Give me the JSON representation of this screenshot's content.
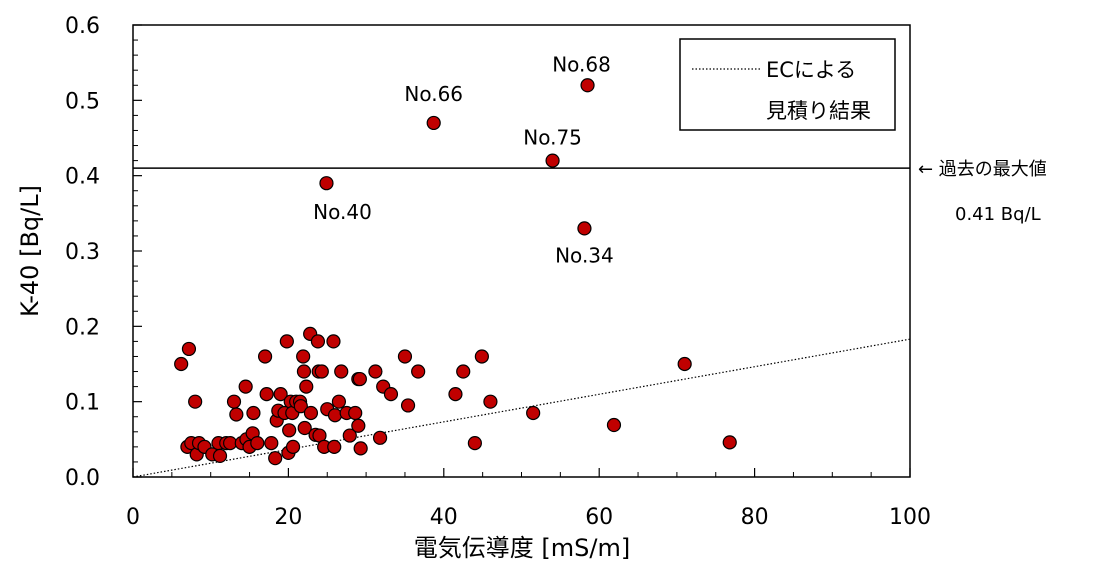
{
  "chart_data": {
    "type": "scatter",
    "xlabel": "電気伝導度 [mS/m]",
    "ylabel": "K-40 [Bq/L]",
    "xlim": [
      0,
      100
    ],
    "ylim": [
      0,
      0.6
    ],
    "x_ticks": [
      "0",
      "20",
      "40",
      "60",
      "80",
      "100"
    ],
    "y_ticks": [
      "0.0",
      "0.1",
      "0.2",
      "0.3",
      "0.4",
      "0.5",
      "0.6"
    ],
    "grid": false,
    "legend": {
      "position": "top-right",
      "line1": "ECによる",
      "line2": "見積り結果"
    },
    "marker_color": "#C00000",
    "series": [
      {
        "points": [
          [
            6.2,
            0.15
          ],
          [
            7,
            0.04
          ],
          [
            7.2,
            0.17
          ],
          [
            7.5,
            0.045
          ],
          [
            8,
            0.1
          ],
          [
            8.2,
            0.03
          ],
          [
            8.5,
            0.045
          ],
          [
            9.2,
            0.04
          ],
          [
            10.2,
            0.03
          ],
          [
            11,
            0.045
          ],
          [
            11.2,
            0.028
          ],
          [
            12,
            0.045
          ],
          [
            12.5,
            0.045
          ],
          [
            13,
            0.1
          ],
          [
            13.3,
            0.083
          ],
          [
            14,
            0.045
          ],
          [
            14.5,
            0.12
          ],
          [
            14.6,
            0.05
          ],
          [
            15,
            0.04
          ],
          [
            15.4,
            0.058
          ],
          [
            15.5,
            0.085
          ],
          [
            16,
            0.045
          ],
          [
            17,
            0.16
          ],
          [
            17.2,
            0.11
          ],
          [
            17.8,
            0.045
          ],
          [
            18.3,
            0.025
          ],
          [
            18.5,
            0.075
          ],
          [
            18.7,
            0.088
          ],
          [
            19,
            0.11
          ],
          [
            19.5,
            0.085
          ],
          [
            19.8,
            0.18
          ],
          [
            20,
            0.032
          ],
          [
            20.1,
            0.062
          ],
          [
            20.3,
            0.1
          ],
          [
            20.5,
            0.085
          ],
          [
            20.6,
            0.04
          ],
          [
            21,
            0.1
          ],
          [
            21.5,
            0.1
          ],
          [
            21.6,
            0.094
          ],
          [
            21.9,
            0.16
          ],
          [
            22,
            0.14
          ],
          [
            22.1,
            0.065
          ],
          [
            22.3,
            0.12
          ],
          [
            22.8,
            0.19
          ],
          [
            22.9,
            0.085
          ],
          [
            23.5,
            0.056
          ],
          [
            23.8,
            0.18
          ],
          [
            23.9,
            0.14
          ],
          [
            24,
            0.055
          ],
          [
            24.3,
            0.14
          ],
          [
            24.6,
            0.04
          ],
          [
            25,
            0.09
          ],
          [
            25.8,
            0.18
          ],
          [
            25.9,
            0.04
          ],
          [
            26,
            0.082
          ],
          [
            26.5,
            0.1
          ],
          [
            26.8,
            0.14
          ],
          [
            27.5,
            0.085
          ],
          [
            27.9,
            0.055
          ],
          [
            28.6,
            0.085
          ],
          [
            29,
            0.068
          ],
          [
            29,
            0.13
          ],
          [
            29.2,
            0.13
          ],
          [
            29.3,
            0.038
          ],
          [
            31.2,
            0.14
          ],
          [
            31.8,
            0.052
          ],
          [
            32.2,
            0.12
          ],
          [
            33.2,
            0.11
          ],
          [
            35,
            0.16
          ],
          [
            35.4,
            0.095
          ],
          [
            36.7,
            0.14
          ],
          [
            41.5,
            0.11
          ],
          [
            42.5,
            0.14
          ],
          [
            44,
            0.045
          ],
          [
            44.9,
            0.16
          ],
          [
            46,
            0.1
          ],
          [
            51.5,
            0.085
          ],
          [
            61.9,
            0.069
          ],
          [
            71,
            0.15
          ],
          [
            76.8,
            0.046
          ],
          [
            24.9,
            0.39
          ],
          [
            38.7,
            0.47
          ],
          [
            54,
            0.42
          ],
          [
            58.1,
            0.33
          ],
          [
            58.5,
            0.52
          ]
        ]
      }
    ],
    "annotations": [
      {
        "text": "No.68",
        "x": 58.5,
        "y": 0.52
      },
      {
        "text": "No.66",
        "x": 38.7,
        "y": 0.47
      },
      {
        "text": "No.75",
        "x": 54,
        "y": 0.42
      },
      {
        "text": "No.40",
        "x": 24.9,
        "y": 0.39
      },
      {
        "text": "No.34",
        "x": 58.1,
        "y": 0.33
      }
    ],
    "reference_line": {
      "y": 0.41,
      "label_line1": "← 過去の最大値",
      "label_line2": "0.41 Bq/L"
    },
    "ec_estimate_line": {
      "x": [
        0,
        100
      ],
      "y": [
        0,
        0.183
      ]
    }
  }
}
